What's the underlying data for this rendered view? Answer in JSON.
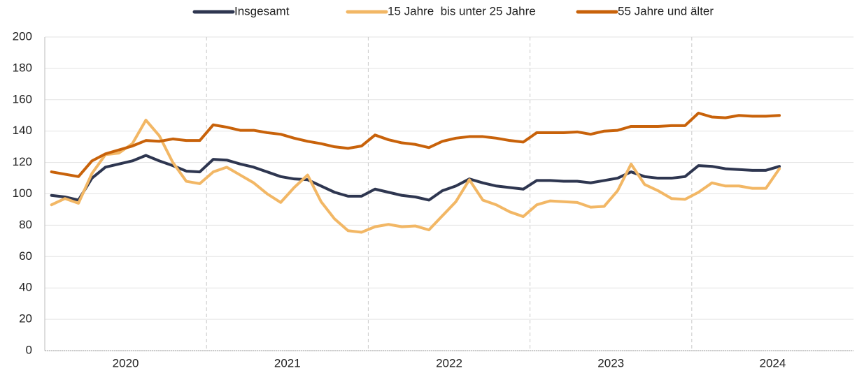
{
  "chart_data": {
    "type": "line",
    "categories": [
      "2020",
      null,
      null,
      null,
      null,
      null,
      null,
      null,
      null,
      null,
      null,
      null,
      "2021",
      null,
      null,
      null,
      null,
      null,
      null,
      null,
      null,
      null,
      null,
      null,
      "2022",
      null,
      null,
      null,
      null,
      null,
      null,
      null,
      null,
      null,
      null,
      null,
      "2023",
      null,
      null,
      null,
      null,
      null,
      null,
      null,
      null,
      null,
      null,
      null,
      "2024",
      null,
      null,
      null,
      null,
      null,
      null
    ],
    "series": [
      {
        "name": "Insgesamt",
        "color": "#2e3650",
        "values": [
          99,
          98,
          96,
          110,
          117,
          119,
          121,
          124.5,
          121,
          118,
          114.5,
          114,
          122,
          121.5,
          119,
          117,
          114,
          111,
          109.5,
          109,
          105,
          101,
          98.5,
          98.5,
          103,
          101,
          99,
          98,
          96,
          102,
          105,
          109.5,
          107,
          105,
          104,
          103,
          108.5,
          108.5,
          108,
          108,
          107,
          108.5,
          110,
          114,
          111,
          110,
          110,
          111,
          118,
          117.5,
          116,
          115.5,
          115,
          115,
          117.5
        ]
      },
      {
        "name": "15 Jahre  bis unter 25 Jahre",
        "color": "#f2b765",
        "values": [
          93,
          97,
          94,
          113,
          125,
          126,
          132,
          147,
          137,
          120,
          108,
          106.5,
          114,
          117,
          112,
          107,
          100,
          94.5,
          104,
          112,
          95,
          84,
          76.5,
          75.5,
          79,
          80.5,
          79,
          79.5,
          77,
          86,
          95,
          109,
          96,
          93,
          88.5,
          85.5,
          93,
          95.5,
          95,
          94.5,
          91.5,
          92,
          102,
          119,
          106,
          102,
          97,
          96.5,
          101,
          107,
          105,
          105,
          103.5,
          103.5,
          116
        ]
      },
      {
        "name": "55 Jahre und älter",
        "color": "#c8620a",
        "values": [
          114,
          112.5,
          111,
          121,
          125.5,
          128,
          130.5,
          134,
          133.5,
          135,
          134,
          134,
          144,
          142.5,
          140.5,
          140.5,
          139,
          138,
          135.5,
          133.5,
          132,
          130,
          129,
          130.5,
          137.5,
          134.5,
          132.5,
          131.5,
          129.5,
          133.5,
          135.5,
          136.5,
          136.5,
          135.5,
          134,
          133,
          139,
          139,
          139,
          139.5,
          138,
          140,
          140.5,
          143,
          143,
          143,
          143.5,
          143.5,
          151.5,
          149,
          148.5,
          150,
          149.5,
          149.5,
          150
        ]
      }
    ],
    "ylim": [
      0,
      200
    ],
    "yticks": [
      0,
      20,
      40,
      60,
      80,
      100,
      120,
      140,
      160,
      180,
      200
    ],
    "grid": true
  }
}
